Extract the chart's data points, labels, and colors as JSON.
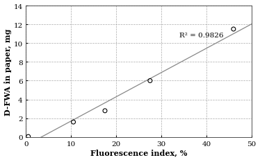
{
  "x_data": [
    0.5,
    10.5,
    17.5,
    27.5,
    46.0
  ],
  "y_data": [
    0.05,
    1.6,
    2.8,
    6.0,
    11.5
  ],
  "xlabel": "Fluorescence index, %",
  "ylabel": "D-FWA in paper, mg",
  "xlim": [
    0,
    50
  ],
  "ylim": [
    0,
    14
  ],
  "xticks": [
    0,
    10,
    20,
    30,
    40,
    50
  ],
  "yticks": [
    0,
    2,
    4,
    6,
    8,
    10,
    12,
    14
  ],
  "r2_text": "R² = 0.9826",
  "r2_x": 34,
  "r2_y": 10.9,
  "line_color": "#888888",
  "marker_color": "#000000",
  "background_color": "#ffffff",
  "grid_color": "#aaaaaa",
  "label_fontsize": 8,
  "tick_fontsize": 7.5,
  "annotation_fontsize": 7.5
}
